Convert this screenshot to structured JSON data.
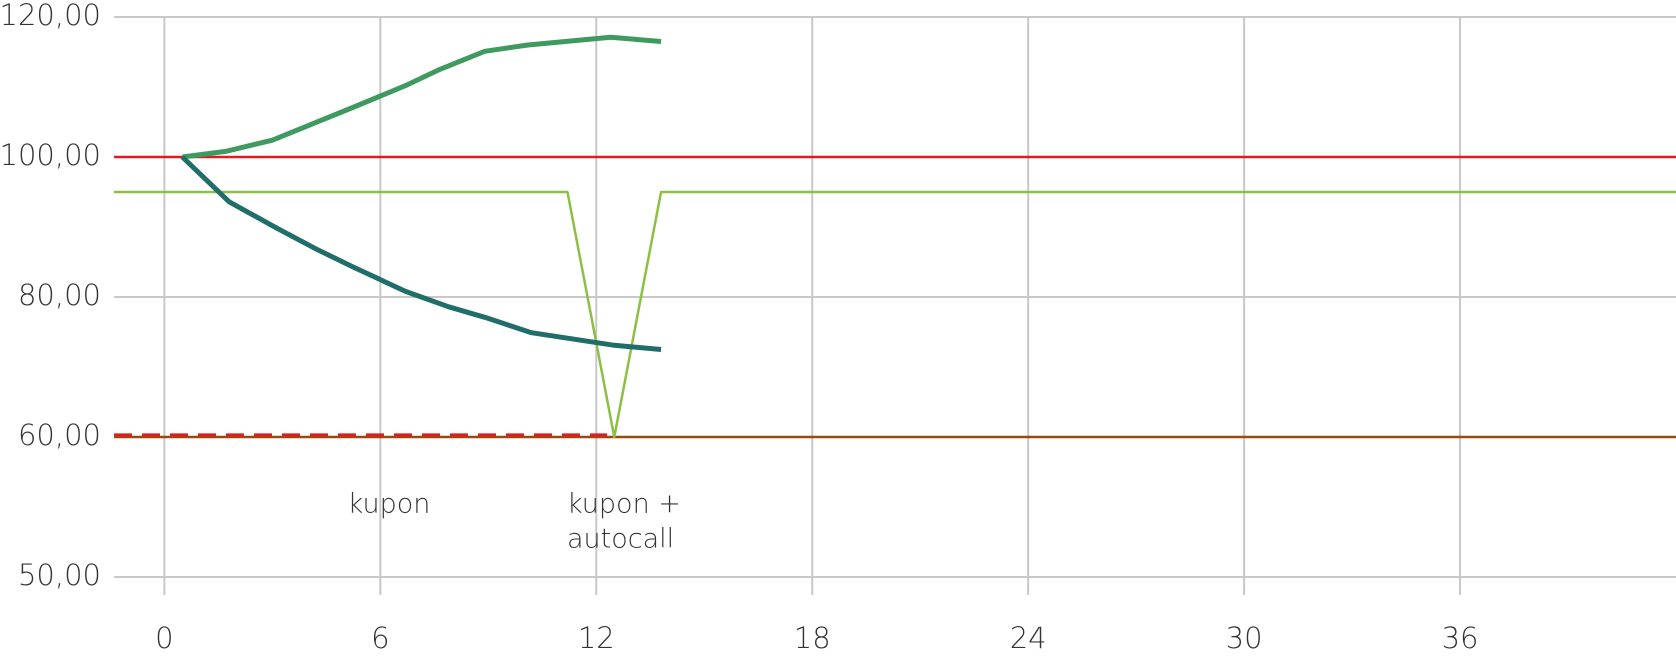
{
  "chart_data": {
    "type": "line",
    "xlim": [
      -1.4,
      42
    ],
    "xticks": [
      0,
      6,
      12,
      18,
      24,
      30,
      36
    ],
    "ylim": [
      50,
      120
    ],
    "yticks": [
      {
        "value": 50,
        "label": "50,00"
      },
      {
        "value": 60,
        "label": "60,00"
      },
      {
        "value": 80,
        "label": "80,00"
      },
      {
        "value": 100,
        "label": "100,00"
      },
      {
        "value": 120,
        "label": "120,00"
      }
    ],
    "grid": true,
    "series": [
      {
        "color": "#9c4a0c",
        "style": "solid",
        "x": [
          -1.4,
          42
        ],
        "values": [
          60,
          60
        ]
      },
      {
        "color": "#e01b22",
        "style": "solid",
        "x": [
          -1.4,
          42
        ],
        "values": [
          100,
          100
        ]
      },
      {
        "color": "#e01b22",
        "style": "dashed",
        "x": [
          -1.4,
          12.3
        ],
        "values": [
          60.3,
          60.3
        ]
      },
      {
        "color": "#8cbf44",
        "style": "solid",
        "x": [
          -1.4,
          11.2,
          12.5,
          13.8,
          42
        ],
        "values": [
          95,
          95,
          60,
          95,
          95
        ]
      },
      {
        "color": "#3f9a60",
        "style": "solid",
        "x": [
          0.5,
          1.7,
          3.0,
          4.1,
          5.2,
          6.7,
          7.6,
          8.9,
          10.1,
          12.4,
          13.8
        ],
        "values": [
          100,
          100.8,
          102.4,
          104.7,
          107,
          110.2,
          112.4,
          115.1,
          116,
          117.1,
          116.5
        ]
      },
      {
        "color": "#1f6e6a",
        "style": "solid",
        "x": [
          0.5,
          1.8,
          3.1,
          4.2,
          5.2,
          6.7,
          7.9,
          8.9,
          10.2,
          12.5,
          13.8
        ],
        "values": [
          100,
          93.6,
          89.9,
          86.9,
          84.4,
          80.8,
          78.6,
          77.1,
          74.9,
          73.1,
          72.5
        ]
      }
    ],
    "annotations": [
      "kupon",
      "kupon +",
      "autocall"
    ]
  }
}
